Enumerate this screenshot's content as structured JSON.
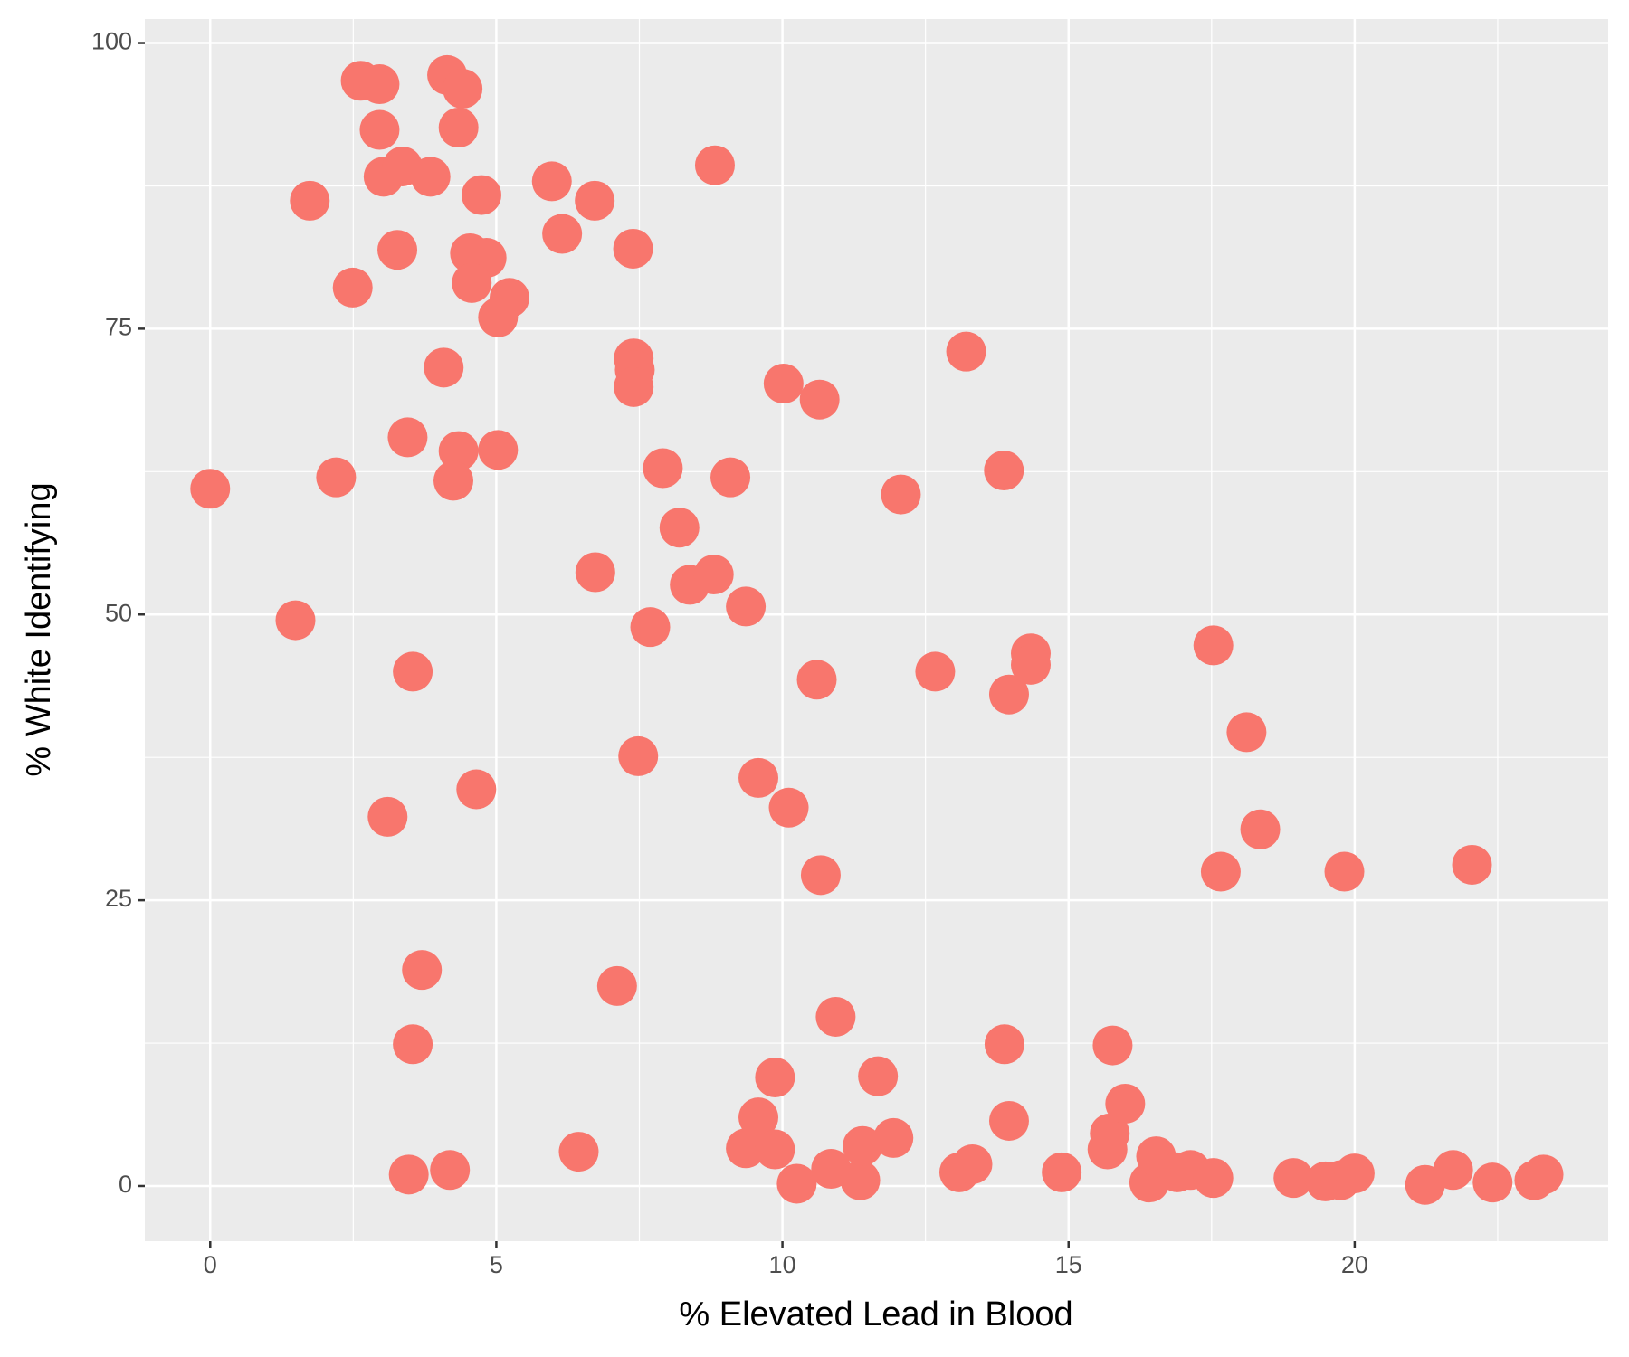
{
  "chart_data": {
    "type": "scatter",
    "x_label": "% Elevated Lead in Blood",
    "y_label": "% White Identifying",
    "color": "#F8766D",
    "grid": true,
    "xlim": [
      -1.143,
      24.43
    ],
    "ylim": [
      -4.83,
      102.1
    ],
    "xticks": [
      0,
      5,
      10,
      15,
      20
    ],
    "yticks": [
      0,
      25,
      50,
      75,
      100
    ],
    "x": [
      0,
      1.49,
      1.74,
      2.2,
      2.49,
      2.63,
      2.96,
      2.96,
      3.03,
      3.36,
      3.27,
      3.45,
      3.1,
      3.54,
      3.7,
      3.54,
      3.47,
      3.85,
      4.08,
      4.14,
      4.41,
      4.34,
      4.34,
      4.25,
      4.74,
      4.54,
      4.83,
      4.57,
      5.23,
      5.03,
      5.03,
      4.65,
      4.19,
      5.97,
      6.15,
      6.72,
      6.73,
      6.44,
      7.39,
      7.4,
      7.42,
      7.4,
      7.91,
      8.2,
      8.38,
      8.8,
      7.69,
      7.48,
      7.11,
      8.82,
      9.09,
      9.36,
      9.58,
      10.11,
      10.02,
      10.65,
      10.6,
      10.67,
      10.93,
      9.87,
      9.58,
      9.36,
      9.87,
      10.25,
      10.85,
      11.36,
      11.4,
      11.67,
      11.94,
      12.07,
      12.67,
      13.21,
      13.09,
      13.32,
      13.87,
      13.96,
      14.34,
      14.34,
      13.88,
      13.96,
      14.88,
      15.68,
      15.72,
      15.77,
      15.99,
      16.41,
      16.53,
      16.9,
      17.13,
      17.53,
      17.53,
      17.66,
      18.11,
      18.35,
      18.93,
      19.49,
      19.75,
      20.0,
      19.82,
      21.23,
      21.72,
      22.05,
      22.41,
      23.14,
      23.3
    ],
    "y": [
      61.0,
      49.5,
      86.2,
      62.0,
      78.6,
      96.7,
      96.4,
      92.4,
      88.3,
      89.2,
      81.9,
      65.5,
      32.3,
      45.0,
      18.9,
      12.4,
      1.0,
      88.3,
      71.6,
      97.2,
      96.0,
      92.6,
      64.3,
      61.7,
      86.7,
      81.6,
      81.2,
      79.0,
      77.7,
      76.0,
      64.4,
      34.7,
      1.4,
      87.9,
      83.3,
      86.2,
      53.7,
      3.0,
      82.0,
      72.4,
      71.4,
      69.9,
      62.8,
      57.6,
      52.6,
      53.5,
      48.9,
      37.6,
      17.5,
      89.3,
      62.0,
      50.7,
      35.7,
      33.1,
      70.2,
      68.8,
      44.3,
      27.2,
      14.8,
      9.5,
      6.0,
      3.3,
      3.2,
      0.2,
      1.5,
      0.5,
      3.5,
      9.6,
      4.2,
      60.5,
      45.0,
      73.0,
      1.2,
      1.9,
      62.6,
      43.0,
      46.6,
      45.6,
      12.4,
      5.7,
      1.2,
      3.2,
      4.6,
      12.3,
      7.2,
      0.3,
      2.6,
      1.2,
      1.4,
      0.7,
      47.3,
      27.5,
      39.7,
      31.2,
      0.7,
      0.4,
      0.5,
      1.1,
      27.5,
      0.1,
      1.4,
      28.1,
      0.3,
      0.5,
      1.0
    ]
  }
}
